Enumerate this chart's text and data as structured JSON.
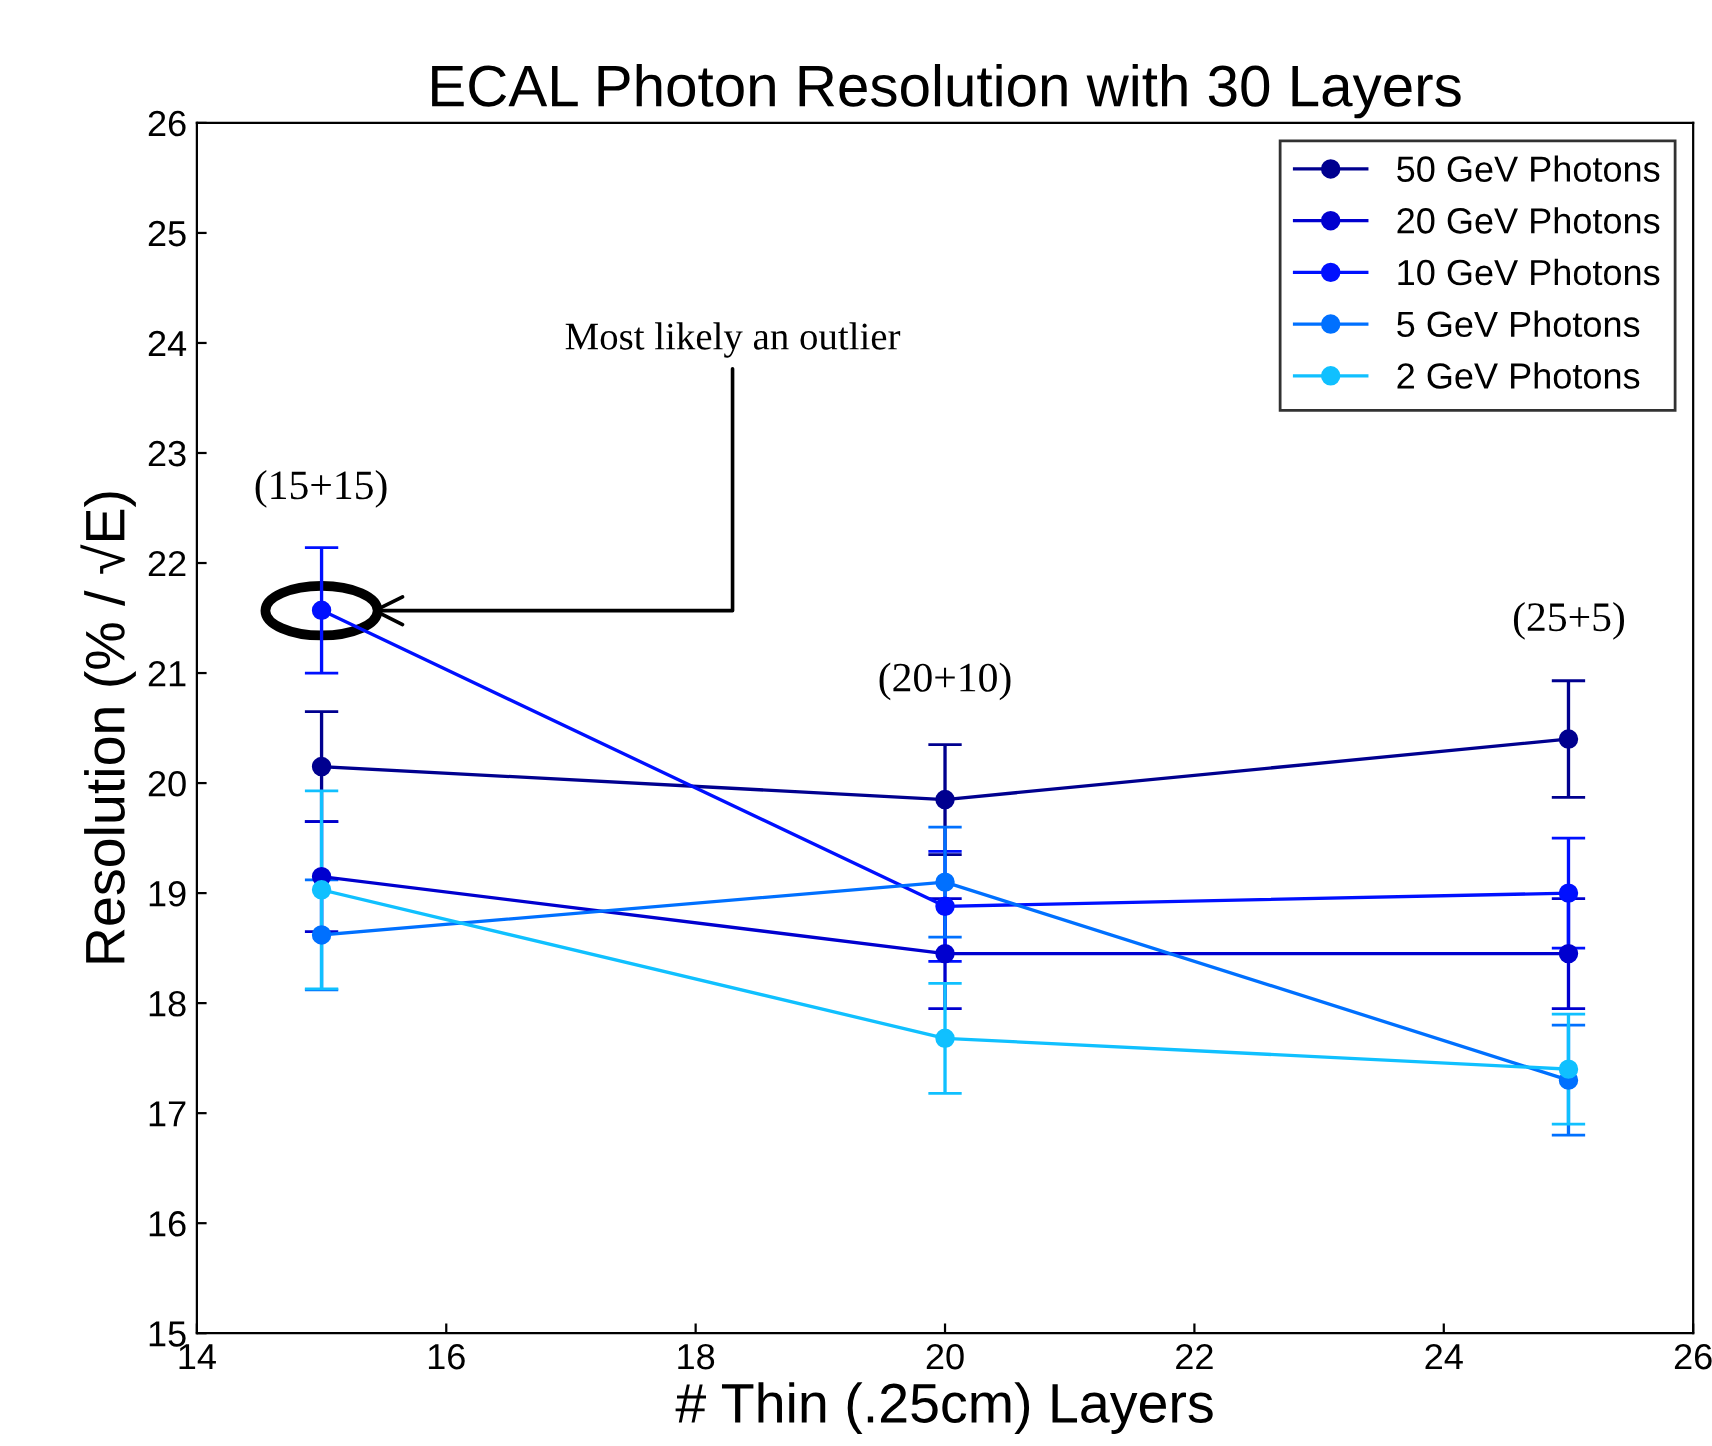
{
  "chart_data": {
    "type": "line",
    "title": "ECAL Photon Resolution with 30 Layers",
    "xlabel": "# Thin (.25cm) Layers",
    "ylabel": "Resolution (% / √E)",
    "x": [
      15,
      20,
      25
    ],
    "series": [
      {
        "name": "50 GeV Photons",
        "color": "#00008f",
        "values": [
          20.15,
          19.85,
          20.4
        ],
        "errors": [
          0.5,
          0.5,
          0.53
        ]
      },
      {
        "name": "20 GeV Photons",
        "color": "#0000cf",
        "values": [
          19.15,
          18.45,
          18.45
        ],
        "errors": [
          0.5,
          0.5,
          0.5
        ]
      },
      {
        "name": "10 GeV Photons",
        "color": "#0010ff",
        "values": [
          21.57,
          18.88,
          19.0
        ],
        "errors": [
          0.57,
          0.5,
          0.5
        ]
      },
      {
        "name": "5 GeV Photons",
        "color": "#0070ff",
        "values": [
          18.62,
          19.1,
          17.3
        ],
        "errors": [
          0.5,
          0.5,
          0.5
        ]
      },
      {
        "name": "2 GeV Photons",
        "color": "#10c0ff",
        "values": [
          19.03,
          17.68,
          17.4
        ],
        "errors": [
          0.9,
          0.5,
          0.5
        ]
      }
    ],
    "annotations": [
      "(15+15)",
      "(20+10)",
      "(25+5)",
      "Most likely an outlier"
    ],
    "xlim": [
      14,
      26
    ],
    "xticks": [
      14,
      16,
      18,
      20,
      22,
      24,
      26
    ],
    "ylim": [
      15,
      26
    ],
    "yticks": [
      15,
      16,
      17,
      18,
      19,
      20,
      21,
      22,
      23,
      24,
      25,
      26
    ],
    "legend": "top right",
    "marker": "circle",
    "line_style": "solid",
    "grid": false
  }
}
